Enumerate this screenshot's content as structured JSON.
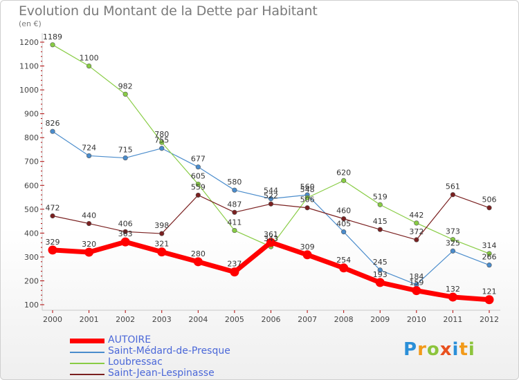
{
  "header": {
    "title": "Evolution du Montant de la Dette par Habitant",
    "unit": "(en €)"
  },
  "logo": {
    "text": "Proxiti"
  },
  "chart_data": {
    "type": "line",
    "title": "Evolution du Montant de la Dette par Habitant",
    "ylabel": "(en €)",
    "xlabel": "",
    "x": [
      "2000",
      "2001",
      "2002",
      "2003",
      "2004",
      "2005",
      "2006",
      "2007",
      "2008",
      "2009",
      "2010",
      "2011",
      "2012"
    ],
    "yticks": [
      "100",
      "200",
      "300",
      "400",
      "500",
      "600",
      "700",
      "800",
      "900",
      "1000",
      "1100",
      "1200"
    ],
    "ylim": [
      100,
      1200
    ],
    "grid": false,
    "legend": "bottom-left",
    "series": [
      {
        "name": "AUTOIRE",
        "color": "#ff0000",
        "values": [
          329,
          320,
          363,
          321,
          280,
          237,
          361,
          309,
          254,
          193,
          159,
          132,
          121
        ],
        "labels": [
          "329",
          "320",
          "363",
          "321",
          "280",
          "237",
          "361",
          "309",
          "254",
          "193",
          "159",
          "132",
          "121"
        ]
      },
      {
        "name": "Saint-Médard-de-Presque",
        "color": "#4a8ccc",
        "values": [
          826,
          724,
          715,
          755,
          677,
          580,
          544,
          560,
          405,
          245,
          184,
          325,
          266
        ],
        "labels": [
          "826",
          "724",
          "715",
          "755",
          "677",
          "580",
          "544",
          "560",
          "405",
          "245",
          "184",
          "325",
          "266"
        ]
      },
      {
        "name": "Loubressac",
        "color": "#88cc44",
        "values": [
          1189,
          1100,
          982,
          780,
          605,
          411,
          343,
          548,
          620,
          519,
          442,
          373,
          314
        ],
        "labels": [
          "1189",
          "1100",
          "982",
          "780",
          "605",
          "411",
          "343",
          "548",
          "620",
          "519",
          "442",
          "373",
          "314"
        ]
      },
      {
        "name": "Saint-Jean-Lespinasse",
        "color": "#7a2020",
        "values": [
          472,
          440,
          406,
          398,
          559,
          487,
          522,
          506,
          460,
          415,
          372,
          561,
          506
        ],
        "labels": [
          "472",
          "440",
          "406",
          "398",
          "559",
          "487",
          "522",
          "506",
          "460",
          "415",
          "372",
          "561",
          "506"
        ]
      }
    ]
  }
}
